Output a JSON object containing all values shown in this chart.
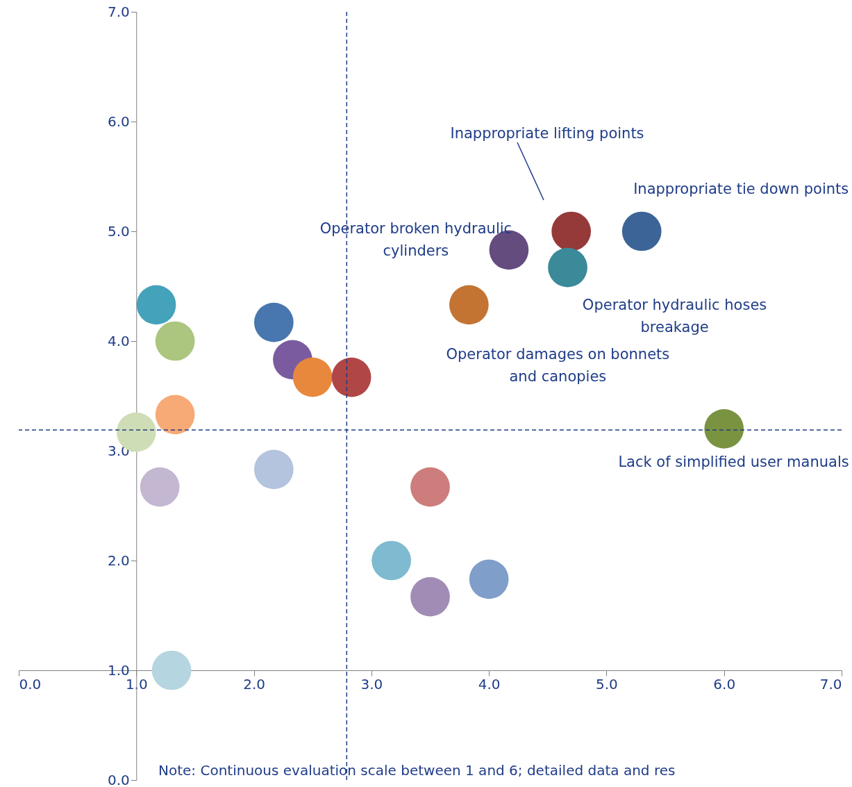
{
  "chart_data": {
    "type": "bubble",
    "marker": "circle",
    "grid": false,
    "xlim": [
      0,
      7
    ],
    "ylim": [
      0,
      7
    ],
    "xticks": [
      {
        "value": 0,
        "label": "0.0"
      },
      {
        "value": 1,
        "label": "1.0"
      },
      {
        "value": 2,
        "label": "2.0"
      },
      {
        "value": 3,
        "label": "3.0"
      },
      {
        "value": 4,
        "label": "4.0"
      },
      {
        "value": 5,
        "label": "5.0"
      },
      {
        "value": 6,
        "label": "6.0"
      },
      {
        "value": 7,
        "label": "7.0"
      }
    ],
    "yticks": [
      {
        "value": 0,
        "label": "0.0"
      },
      {
        "value": 1,
        "label": "1.0"
      },
      {
        "value": 2,
        "label": "2.0"
      },
      {
        "value": 3,
        "label": "3.0"
      },
      {
        "value": 4,
        "label": "4.0"
      },
      {
        "value": 5,
        "label": "5.0"
      },
      {
        "value": 6,
        "label": "6.0"
      },
      {
        "value": 7,
        "label": "7.0"
      }
    ],
    "series": [
      {
        "x": [
          1.17,
          1.33,
          1.33,
          1.0,
          1.2,
          1.3,
          2.17,
          2.33,
          2.5,
          2.83,
          2.17,
          3.17,
          3.5,
          3.5,
          4.0,
          3.83,
          4.17,
          4.7,
          4.67,
          5.3,
          6.0
        ],
        "values": [
          4.33,
          4.0,
          3.33,
          3.17,
          2.67,
          1.0,
          4.17,
          3.83,
          3.67,
          3.67,
          2.83,
          2.0,
          2.67,
          1.67,
          1.83,
          4.33,
          4.83,
          5.0,
          4.67,
          5.0,
          3.2
        ],
        "sizes": [
          1,
          1,
          1,
          1,
          1,
          1,
          1,
          1,
          1,
          1,
          1,
          1,
          1,
          1,
          1,
          1,
          1,
          1,
          1,
          1,
          1
        ],
        "colors": [
          "#45a2bb",
          "#acc57f",
          "#f7a976",
          "#cfddb6",
          "#c3b7d1",
          "#b5d5e0",
          "#4876ae",
          "#7a5b9f",
          "#e8883d",
          "#b04746",
          "#b4c3de",
          "#7ebad0",
          "#cd7d7c",
          "#a18cb6",
          "#7f9ec9",
          "#c37433",
          "#644c7e",
          "#963a39",
          "#3a8a99",
          "#3c6496",
          "#7a9341"
        ]
      }
    ],
    "ref_lines": [
      {
        "axis": "x",
        "value": 2.79,
        "color": "#1f3c88",
        "line_style": "dashed"
      },
      {
        "axis": "y",
        "value": 3.19,
        "color": "#1f3c88",
        "line_style": "dashed"
      }
    ],
    "annotations": [
      "Inappropriate lifting points",
      {
        "text": "Inappropriate tie down points",
        "x": 5.3,
        "y": 5.0
      },
      {
        "text": "Operator broken hydraulic\ncylinders",
        "x": 4.17,
        "y": 4.83
      },
      {
        "text": "Operator hydraulic hoses\nbreakage",
        "x": 4.67,
        "y": 4.67
      },
      {
        "text": "Operator damages on bonnets\nand canopies",
        "x": 3.83,
        "y": 4.33
      },
      {
        "text": "Lack of simplified user manuals",
        "x": 6.0,
        "y": 3.2
      },
      "Note: Continuous evaluation scale between 1 and 6; detailed data and res"
    ]
  }
}
